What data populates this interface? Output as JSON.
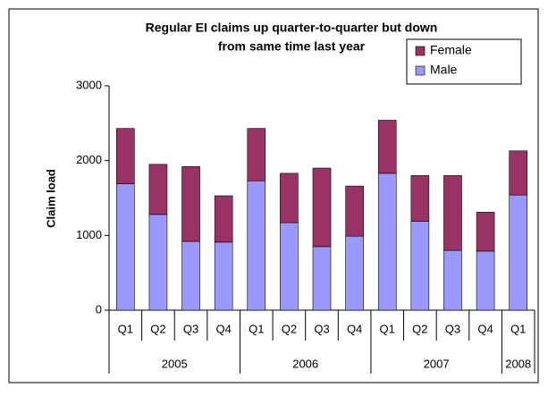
{
  "chart_data": {
    "type": "stacked_bar",
    "title": [
      "Regular EI claims up quarter-to-quarter but down",
      "from same time last year"
    ],
    "y_label": "Claim load",
    "groups": [
      {
        "name": "2005",
        "categories": [
          "Q1",
          "Q2",
          "Q3",
          "Q4"
        ]
      },
      {
        "name": "2006",
        "categories": [
          "Q1",
          "Q2",
          "Q3",
          "Q4"
        ]
      },
      {
        "name": "2007",
        "categories": [
          "Q1",
          "Q2",
          "Q3",
          "Q4"
        ]
      },
      {
        "name": "2008",
        "categories": [
          "Q1"
        ]
      }
    ],
    "series": [
      {
        "name": "Male",
        "color": "#9999ff",
        "values": [
          1690,
          1280,
          920,
          910,
          1730,
          1170,
          850,
          990,
          1830,
          1190,
          800,
          790,
          1540
        ]
      },
      {
        "name": "Female",
        "color": "#993366",
        "values": [
          740,
          670,
          1000,
          620,
          700,
          660,
          1050,
          670,
          710,
          610,
          1000,
          520,
          590
        ]
      }
    ],
    "ylim": [
      0,
      3000
    ],
    "yticks": [
      0,
      1000,
      2000,
      3000
    ],
    "grid": false,
    "legend": "upper right"
  }
}
